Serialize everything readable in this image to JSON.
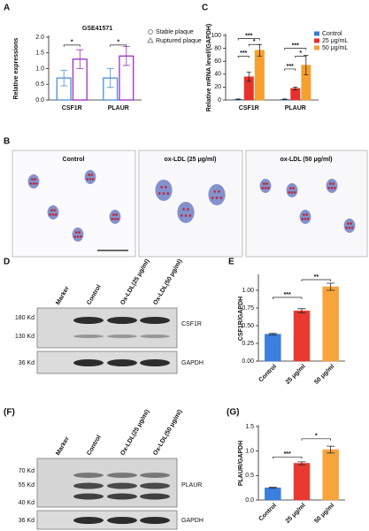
{
  "chart_data": [
    {
      "type": "bar",
      "title": "GSE41571",
      "ylabel": "Relative expressions",
      "categories": [
        "CSF1R",
        "PLAUR"
      ],
      "series": [
        {
          "name": "Stable plaque",
          "color": "#4a8fd8",
          "values": [
            0.7,
            0.7
          ],
          "errors": [
            0.25,
            0.3
          ]
        },
        {
          "name": "Ruptured plaque",
          "color": "#9b2fc6",
          "values": [
            1.3,
            1.4
          ],
          "errors": [
            0.3,
            0.3
          ]
        }
      ],
      "ylim": [
        0,
        2.0
      ],
      "yticks": [
        {
          "value": 0,
          "label": "0.0"
        },
        0.5,
        {
          "value": 1,
          "label": "1.0"
        },
        1.5,
        {
          "value": 2,
          "label": "2.0"
        }
      ],
      "annotations": [
        "*",
        "*"
      ]
    },
    {
      "type": "bar",
      "ylabel": "Relative mRNA level/(GAPDH)",
      "categories": [
        "CSF1R",
        "PLAUR"
      ],
      "series": [
        {
          "name": "Control",
          "color": "#3b7dd8",
          "values": [
            1,
            1
          ],
          "errors": [
            0.5,
            0.5
          ]
        },
        {
          "name": "25 μg/mL",
          "color": "#e8302a",
          "values": [
            36,
            18
          ],
          "errors": [
            7,
            2
          ]
        },
        {
          "name": "50 μg/mL",
          "color": "#f5a030",
          "values": [
            77,
            54
          ],
          "errors": [
            9,
            15
          ]
        }
      ],
      "ylim": [
        0,
        100
      ],
      "yticks": [
        0,
        20,
        40,
        60,
        80,
        100
      ],
      "annotations": [
        "***",
        "***",
        "*",
        "***",
        "***",
        "*"
      ]
    },
    {
      "type": "bar",
      "ylabel": "CSF1R/GAPDH",
      "categories": [
        "Control",
        "25 μg/ml",
        "50 μg/ml"
      ],
      "values": [
        0.38,
        0.71,
        1.05
      ],
      "errors": [
        0.01,
        0.03,
        0.05
      ],
      "colors": [
        "#3b7fe0",
        "#e83a30",
        "#f7a43a"
      ],
      "ylim": [
        0,
        1.2
      ],
      "yticks": [
        {
          "value": 0,
          "label": "0.00"
        },
        0.25,
        {
          "value": 0.5,
          "label": "0.50"
        },
        0.75,
        {
          "value": 1,
          "label": "1.00"
        }
      ],
      "annotations": [
        "***",
        "**"
      ]
    },
    {
      "type": "bar",
      "ylabel": "PLAUR/GAPDH",
      "categories": [
        "Control",
        "25 μg/ml",
        "50 μg/ml"
      ],
      "values": [
        0.25,
        0.75,
        1.03
      ],
      "errors": [
        0.01,
        0.03,
        0.07
      ],
      "colors": [
        "#3b7fe0",
        "#e83a30",
        "#f7a43a"
      ],
      "ylim": [
        0,
        1.5
      ],
      "yticks": [
        {
          "value": 0,
          "label": "0.0"
        },
        0.5,
        {
          "value": 1,
          "label": "1.0"
        },
        1.5
      ],
      "annotations": [
        "***",
        "*"
      ]
    }
  ],
  "panel_labels": [
    "A",
    "B",
    "C",
    "D",
    "E",
    "(F)",
    "(G)"
  ],
  "micrographs": [
    "Control",
    "ox-LDL (25 μg/ml)",
    "ox-LDL (50 μg/ml)"
  ],
  "blot_d": {
    "lanes": [
      "Marker",
      "Control",
      "Ox-LDL(25 μg/ml)",
      "Ox-LDL(50 μg/ml)"
    ],
    "markers": [
      "180 Kd",
      "130 Kd",
      "36 Kd"
    ],
    "proteins": [
      "CSF1R",
      "GAPDH"
    ]
  },
  "blot_f": {
    "lanes": [
      "Marker",
      "Control",
      "Ox-LDL(25 μg/ml)",
      "Ox-LDL(50 μg/ml)"
    ],
    "markers": [
      "70 Kd",
      "55 Kd",
      "40 Kd",
      "36 Kd"
    ],
    "proteins": [
      "PLAUR",
      "GAPDH"
    ]
  }
}
